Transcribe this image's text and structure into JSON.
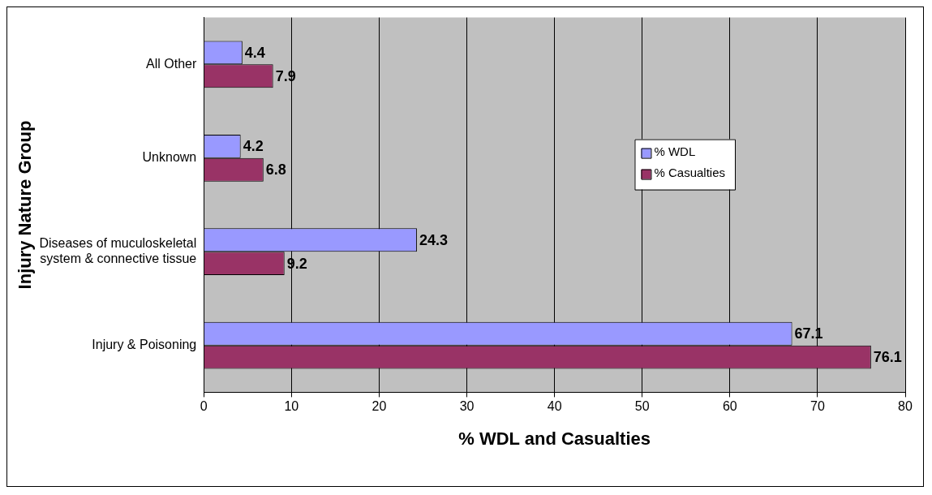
{
  "chart_data": {
    "type": "bar",
    "orientation": "horizontal",
    "xlabel": "% WDL and Casualties",
    "ylabel": "Injury Nature Group",
    "categories": [
      "All Other",
      "Unknown",
      "Diseases of muculoskeletal system & connective tissue",
      "Injury & Poisoning"
    ],
    "series": [
      {
        "name": "% WDL",
        "color": "#9999ff",
        "values": [
          4.4,
          4.2,
          24.3,
          67.1
        ]
      },
      {
        "name": "% Casualties",
        "color": "#993366",
        "values": [
          7.9,
          6.8,
          9.2,
          76.1
        ]
      }
    ],
    "xlim": [
      0,
      80
    ],
    "xticks": [
      0,
      10,
      20,
      30,
      40,
      50,
      60,
      70,
      80
    ],
    "grid": "x",
    "legend": "right",
    "data_labels": true
  }
}
